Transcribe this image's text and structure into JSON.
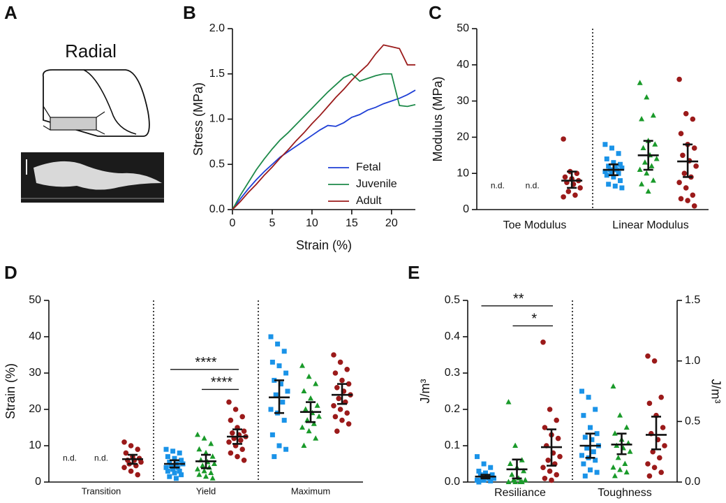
{
  "chart_data": [
    {
      "panel": "A",
      "type": "diagram",
      "title": "Radial"
    },
    {
      "panel": "B",
      "type": "line",
      "x_label": "Strain (%)",
      "y_label": "Stress (MPa)",
      "xlim": [
        0,
        23
      ],
      "xticks": [
        0,
        5,
        10,
        15,
        20
      ],
      "ylim": [
        0,
        2
      ],
      "yticks": [
        {
          "value": 0,
          "label": "0.0"
        },
        {
          "value": 0.5,
          "label": "0.5"
        },
        {
          "value": 1,
          "label": "1.0"
        },
        {
          "value": 1.5,
          "label": "1.5"
        },
        {
          "value": 2,
          "label": "2.0"
        }
      ],
      "legend": "lower right",
      "x": [
        0,
        1,
        2,
        3,
        4,
        5,
        6,
        7,
        8,
        9,
        10,
        11,
        12,
        13,
        14,
        15,
        16,
        17,
        18,
        19,
        20,
        21,
        22,
        23
      ],
      "series": [
        {
          "name": "Fetal",
          "color": "#1f3fd6",
          "values": [
            0,
            0.12,
            0.23,
            0.33,
            0.42,
            0.5,
            0.58,
            0.64,
            0.7,
            0.76,
            0.82,
            0.88,
            0.93,
            0.92,
            0.96,
            1.02,
            1.05,
            1.1,
            1.13,
            1.17,
            1.2,
            1.23,
            1.27,
            1.32
          ]
        },
        {
          "name": "Juvenile",
          "color": "#1e8a4a",
          "values": [
            0,
            0.16,
            0.3,
            0.44,
            0.56,
            0.67,
            0.77,
            0.85,
            0.94,
            1.03,
            1.12,
            1.21,
            1.3,
            1.38,
            1.46,
            1.5,
            1.42,
            1.45,
            1.48,
            1.5,
            1.5,
            1.15,
            1.14,
            1.16
          ]
        },
        {
          "name": "Adult",
          "color": "#9b1c1c",
          "values": [
            0,
            0.09,
            0.19,
            0.28,
            0.38,
            0.47,
            0.57,
            0.66,
            0.76,
            0.85,
            0.95,
            1.04,
            1.14,
            1.24,
            1.33,
            1.43,
            1.52,
            1.6,
            1.72,
            1.82,
            1.8,
            1.78,
            1.6,
            1.6
          ]
        }
      ]
    },
    {
      "panel": "C",
      "type": "dotplot",
      "y_label": "Modulus (MPa)",
      "ylim": [
        0,
        50
      ],
      "yticks": [
        0,
        10,
        20,
        30,
        40,
        50
      ],
      "colors": [
        "#1a93e8",
        "#1a9a2a",
        "#9b1a1a"
      ],
      "markers": [
        "square",
        "triangle",
        "circle"
      ],
      "groups": [
        {
          "category": "Toe Modulus",
          "cells": [
            {
              "label": "n.d."
            },
            {
              "label": "n.d."
            },
            {
              "points": [
                19.5,
                10.5,
                10,
                9,
                8.5,
                8,
                7.5,
                7,
                6,
                5,
                4,
                3.5
              ],
              "mean": 8,
              "ci": [
                6,
                10.5
              ]
            }
          ]
        },
        {
          "category": "Linear Modulus",
          "cells": [
            {
              "points": [
                18,
                17,
                15.5,
                14,
                13,
                12.5,
                12,
                12,
                11.5,
                11,
                11,
                10.5,
                10,
                10,
                9.5,
                9,
                8,
                7,
                6.5,
                6
              ],
              "mean": 11,
              "ci": [
                9.5,
                12.5
              ]
            },
            {
              "points": [
                35,
                31,
                26,
                25,
                19,
                18,
                17,
                15,
                14,
                13,
                12,
                11,
                10,
                8,
                7,
                5
              ],
              "mean": 15,
              "ci": [
                11,
                19
              ]
            },
            {
              "points": [
                36,
                26.5,
                25,
                21,
                18,
                17,
                15,
                13.5,
                12,
                10,
                9,
                7.5,
                6,
                4,
                3,
                2.5,
                1
              ],
              "mean": 13.3,
              "ci": [
                9,
                18
              ]
            }
          ]
        }
      ]
    },
    {
      "panel": "D",
      "type": "dotplot",
      "y_label": "Strain (%)",
      "ylim": [
        0,
        50
      ],
      "yticks": [
        0,
        10,
        20,
        30,
        40,
        50
      ],
      "colors": [
        "#1a93e8",
        "#1a9a2a",
        "#9b1a1a"
      ],
      "markers": [
        "square",
        "triangle",
        "circle"
      ],
      "groups": [
        {
          "category": "Transition",
          "cells": [
            {
              "label": "n.d."
            },
            {
              "label": "n.d."
            },
            {
              "points": [
                11,
                10,
                9,
                8,
                7,
                6.5,
                6,
                6,
                5.5,
                5,
                4.5,
                4,
                3,
                2
              ],
              "mean": 6.3,
              "ci": [
                5,
                7.5
              ]
            }
          ]
        },
        {
          "category": "Yield",
          "cells": [
            {
              "points": [
                9,
                8.5,
                8,
                7,
                6.5,
                6,
                5.5,
                5,
                5,
                4.5,
                4,
                4,
                3.5,
                3,
                3,
                2.5,
                2,
                1.5,
                1
              ],
              "mean": 5,
              "ci": [
                4,
                6
              ]
            },
            {
              "points": [
                13,
                12,
                10.5,
                9,
                8,
                7,
                6,
                5.5,
                5,
                4.5,
                4,
                3.5,
                3,
                2.5,
                2,
                1.5,
                1
              ],
              "mean": 5.7,
              "ci": [
                3.8,
                7.5
              ]
            },
            {
              "points": [
                22,
                20,
                18,
                17,
                15,
                14,
                13.5,
                13,
                12.5,
                12,
                11.5,
                11,
                10,
                9,
                8,
                7,
                6
              ],
              "mean": 12.5,
              "ci": [
                10.5,
                14.5
              ]
            }
          ],
          "brackets": [
            {
              "text": "****",
              "between": [
                0,
                2
              ],
              "y": 31
            },
            {
              "text": "****",
              "between": [
                1,
                2
              ],
              "y": 25.5
            }
          ]
        },
        {
          "category": "Maximum",
          "cells": [
            {
              "points": [
                40,
                38,
                36,
                33,
                32,
                30,
                28,
                27,
                25,
                24,
                22,
                20,
                19,
                17,
                13,
                10,
                9,
                7
              ],
              "mean": 23.3,
              "ci": [
                19,
                28
              ]
            },
            {
              "points": [
                32,
                29,
                27,
                25,
                23,
                21,
                20,
                19,
                18,
                17,
                16,
                15,
                14,
                12,
                10
              ],
              "mean": 19.3,
              "ci": [
                16.5,
                22
              ]
            },
            {
              "points": [
                35,
                33,
                31,
                30,
                28,
                27,
                26,
                25,
                24,
                23,
                22,
                21,
                20,
                19,
                18,
                17,
                16,
                14
              ],
              "mean": 24,
              "ci": [
                21.5,
                27
              ]
            }
          ]
        }
      ]
    },
    {
      "panel": "E",
      "type": "dotplot",
      "y_label": "J/m³",
      "y2_label": "J/m³",
      "ylim": [
        0,
        0.5
      ],
      "yticks": [
        {
          "value": 0,
          "label": "0.0"
        },
        0.1,
        0.2,
        0.3,
        0.4,
        0.5
      ],
      "y2lim": [
        0,
        1.5
      ],
      "y2ticks": [
        {
          "value": 0,
          "label": "0.0"
        },
        0.5,
        {
          "value": 1,
          "label": "1.0"
        },
        1.5
      ],
      "colors": [
        "#1a93e8",
        "#1a9a2a",
        "#9b1a1a"
      ],
      "markers": [
        "square",
        "triangle",
        "circle"
      ],
      "groups": [
        {
          "category": "Resiliance",
          "cells": [
            {
              "points": [
                0.07,
                0.05,
                0.04,
                0.03,
                0.025,
                0.02,
                0.02,
                0.015,
                0.01,
                0.01,
                0.01,
                0.005,
                0.005,
                0.003,
                0
              ],
              "mean": 0.015,
              "ci": [
                0.01,
                0.02
              ]
            },
            {
              "points": [
                0.22,
                0.1,
                0.06,
                0.05,
                0.04,
                0.03,
                0.02,
                0.01,
                0.005,
                0.005,
                0,
                0,
                0,
                0
              ],
              "mean": 0.035,
              "ci": [
                0.01,
                0.062
              ]
            },
            {
              "points": [
                0.385,
                0.2,
                0.17,
                0.15,
                0.13,
                0.12,
                0.1,
                0.08,
                0.07,
                0.06,
                0.05,
                0.04,
                0.03,
                0.02,
                0.01,
                0.005
              ],
              "mean": 0.096,
              "ci": [
                0.045,
                0.145
              ]
            }
          ],
          "brackets": [
            {
              "text": "**",
              "between": [
                0,
                2
              ],
              "y": 0.485
            },
            {
              "text": "*",
              "between": [
                1,
                2
              ],
              "y": 0.43
            }
          ]
        },
        {
          "category": "Toughness",
          "axis": "y2",
          "cells": [
            {
              "points": [
                0.75,
                0.7,
                0.6,
                0.55,
                0.45,
                0.4,
                0.37,
                0.35,
                0.3,
                0.28,
                0.25,
                0.22,
                0.2,
                0.18,
                0.15,
                0.1,
                0.08,
                0.05
              ],
              "mean": 0.3,
              "ci": [
                0.2,
                0.4
              ]
            },
            {
              "points": [
                0.79,
                0.55,
                0.45,
                0.4,
                0.35,
                0.32,
                0.3,
                0.28,
                0.25,
                0.2,
                0.15,
                0.12,
                0.1,
                0.08,
                0.05
              ],
              "mean": 0.31,
              "ci": [
                0.23,
                0.4
              ]
            },
            {
              "points": [
                1.04,
                1,
                0.7,
                0.65,
                0.55,
                0.45,
                0.4,
                0.35,
                0.3,
                0.25,
                0.2,
                0.15,
                0.12,
                0.08,
                0.05
              ],
              "mean": 0.39,
              "ci": [
                0.27,
                0.54
              ]
            }
          ]
        }
      ]
    }
  ]
}
